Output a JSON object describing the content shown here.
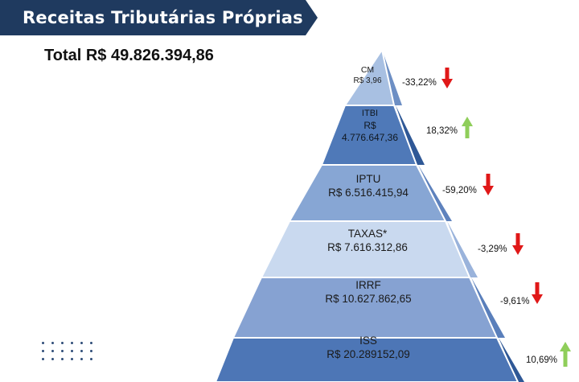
{
  "header": {
    "title": "Receitas Tributárias Próprias",
    "total": "Total R$ 49.826.394,86",
    "banner_color": "#1f3a5f"
  },
  "pyramid": {
    "levels": [
      {
        "name": "CM",
        "value": "R$ 3,96",
        "change": "-33,22%",
        "direction": "down",
        "color": "#a8c0e2"
      },
      {
        "name": "ITBI",
        "value_line1": "R$",
        "value_line2": "4.776.647,36",
        "change": "18,32%",
        "direction": "up",
        "color": "#4f79b8"
      },
      {
        "name": "IPTU",
        "value": "R$ 6.516.415,94",
        "change": "-59,20%",
        "direction": "down",
        "color": "#87a6d4"
      },
      {
        "name": "TAXAS*",
        "value": "R$ 7.616.312,86",
        "change": "-3,29%",
        "direction": "down",
        "color": "#c9d9ef"
      },
      {
        "name": "IRRF",
        "value": "R$ 10.627.862,65",
        "change": "-9,61%",
        "direction": "down",
        "color": "#86a2d2"
      },
      {
        "name": "ISS",
        "value": "R$ 20.289152,09",
        "change": "10,69%",
        "direction": "up",
        "color": "#4d76b6"
      }
    ],
    "arrow_colors": {
      "up": "#8fce5a",
      "down": "#e01818"
    }
  }
}
